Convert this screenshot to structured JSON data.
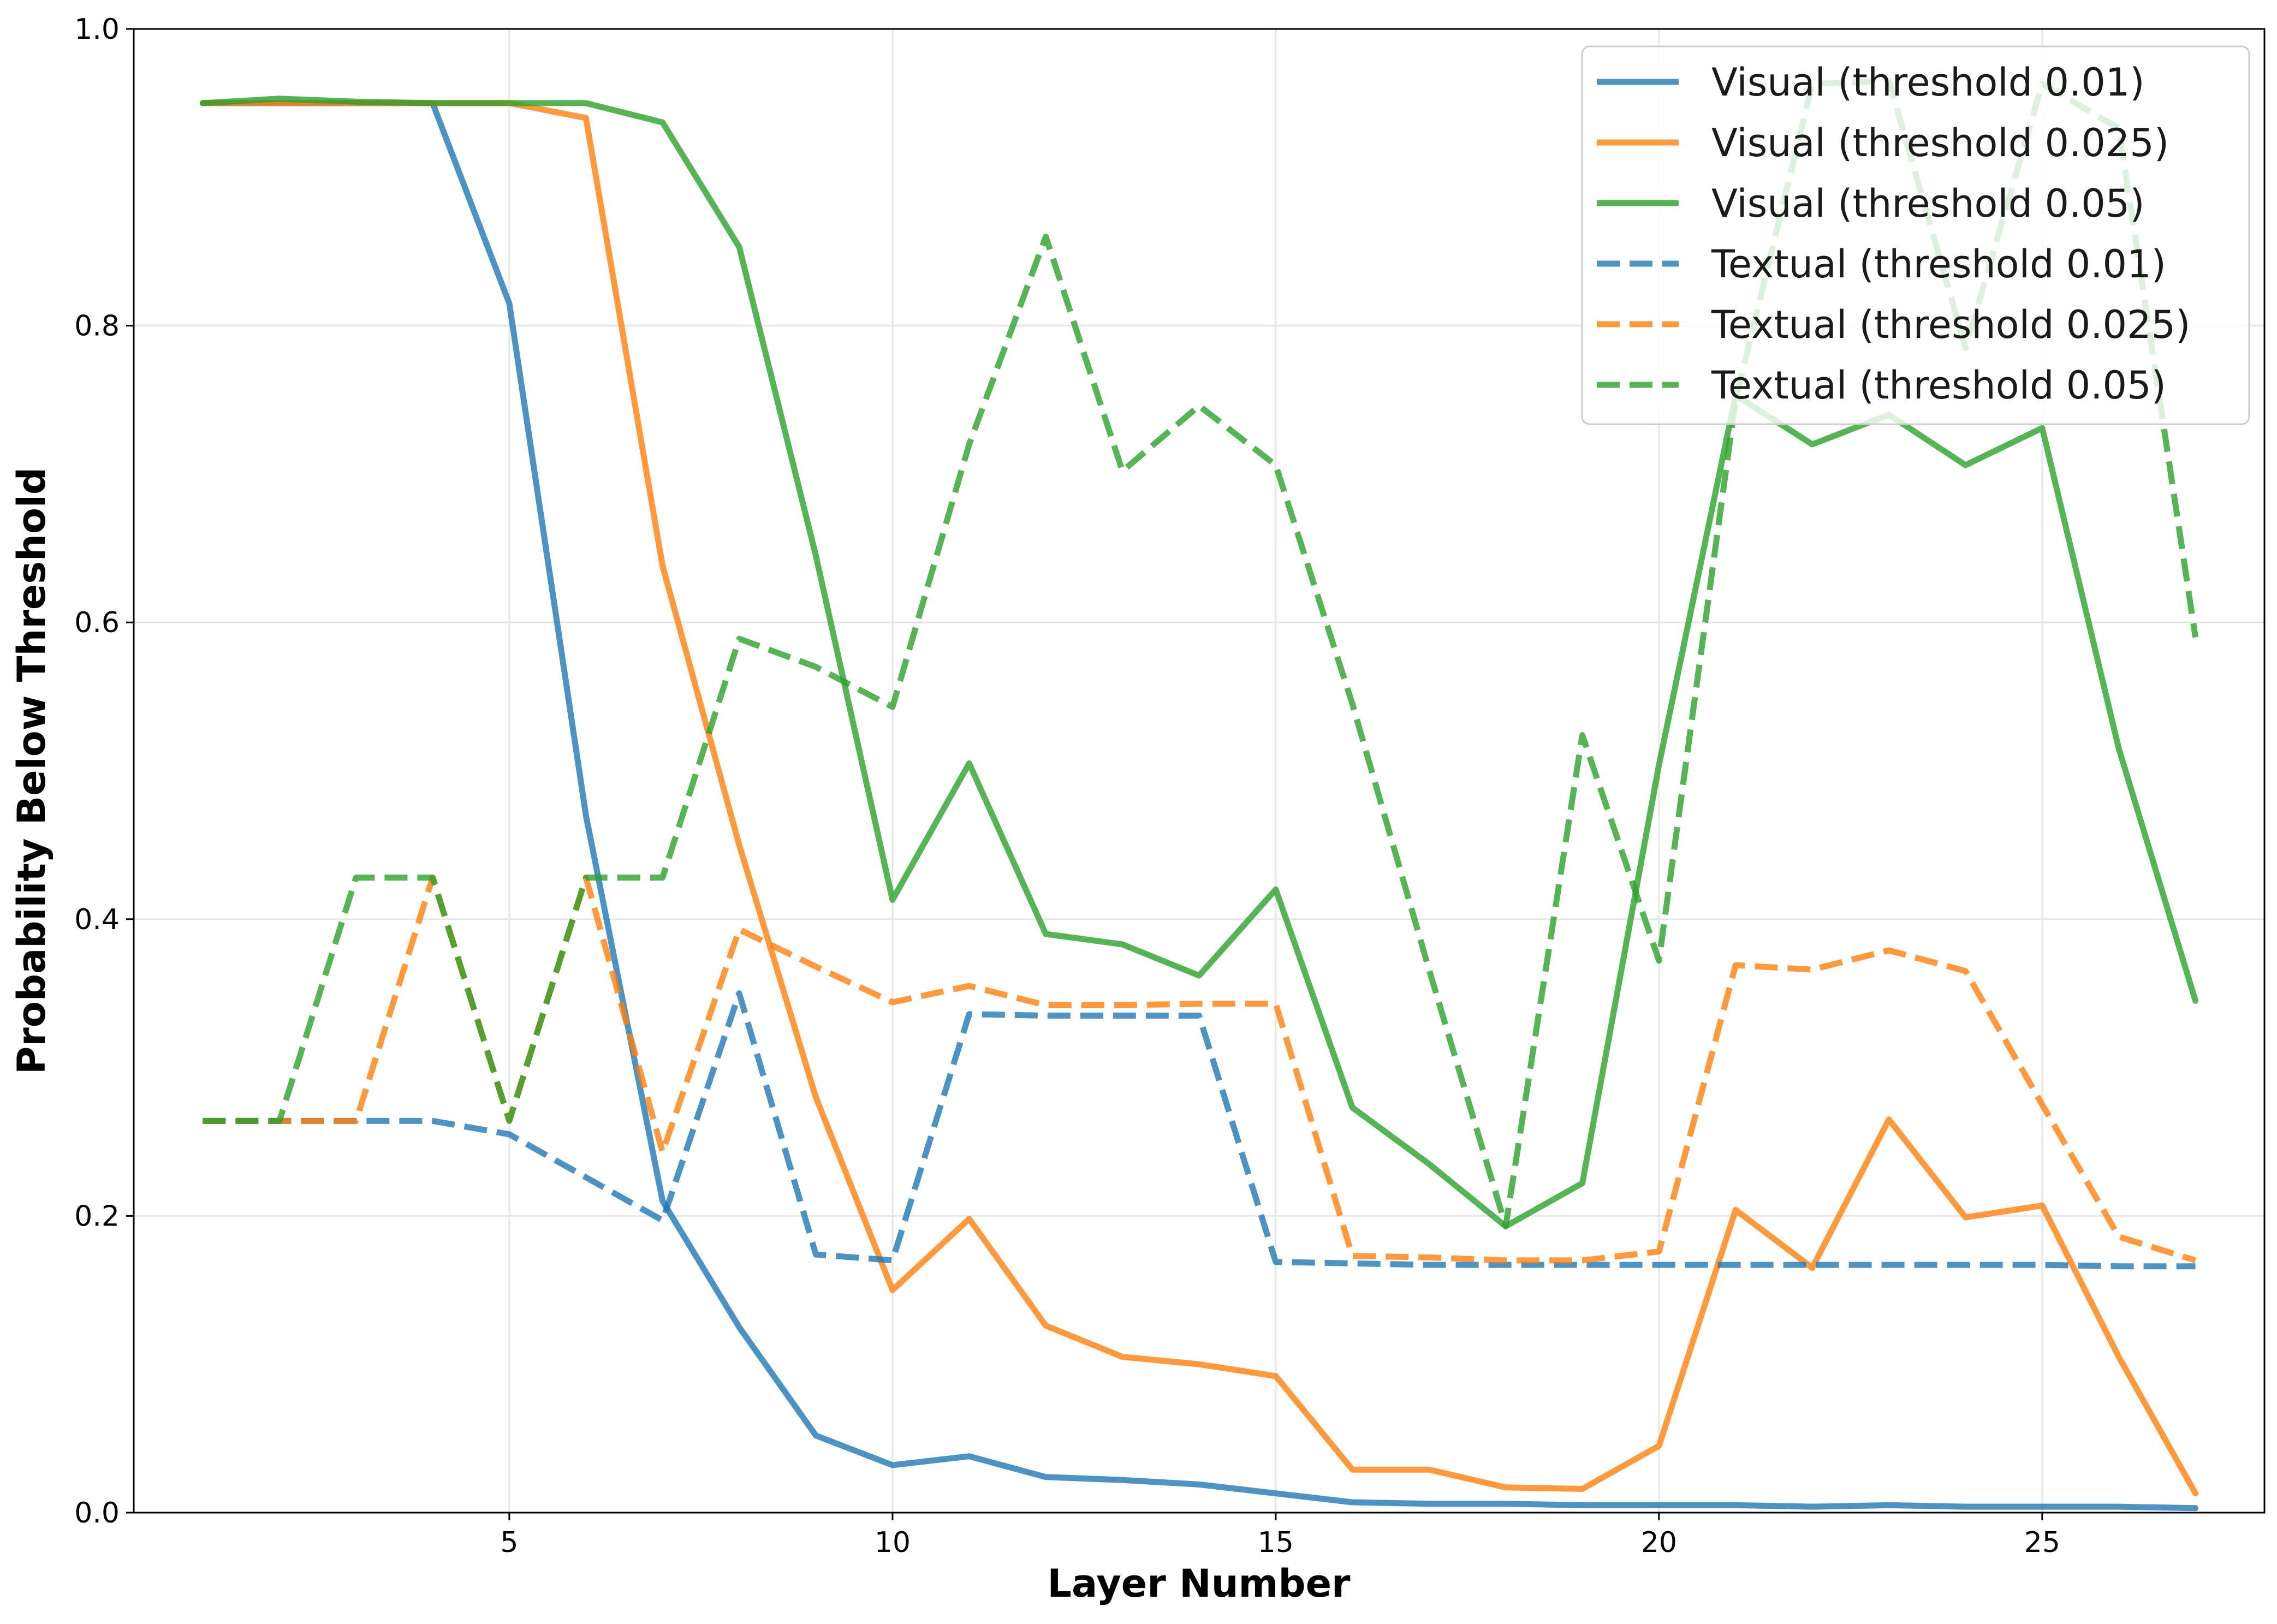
{
  "chart_data": {
    "type": "line",
    "title": "",
    "xlabel": "Layer Number",
    "ylabel": "Probability Below Threshold",
    "xlim": [
      0.1,
      27.9
    ],
    "ylim": [
      0,
      1.0
    ],
    "xticks": [
      5,
      10,
      15,
      20,
      25
    ],
    "yticks": [
      0.0,
      0.2,
      0.4,
      0.6,
      0.8,
      1.0
    ],
    "grid": true,
    "legend_position": "top-right",
    "x": [
      1,
      2,
      3,
      4,
      5,
      6,
      7,
      8,
      9,
      10,
      11,
      12,
      13,
      14,
      15,
      16,
      17,
      18,
      19,
      20,
      21,
      22,
      23,
      24,
      25,
      26,
      27
    ],
    "series": [
      {
        "name": "Visual (threshold 0.01)",
        "color": "#1f77b4",
        "style": "solid",
        "values": [
          0.95,
          0.95,
          0.95,
          0.95,
          0.815,
          0.47,
          0.21,
          0.125,
          0.052,
          0.032,
          0.038,
          0.024,
          0.022,
          0.019,
          0.013,
          0.007,
          0.006,
          0.006,
          0.005,
          0.005,
          0.005,
          0.004,
          0.005,
          0.004,
          0.004,
          0.004,
          0.003
        ]
      },
      {
        "name": "Visual (threshold 0.025)",
        "color": "#ff7f0e",
        "style": "solid",
        "values": [
          0.95,
          0.95,
          0.95,
          0.95,
          0.95,
          0.94,
          0.638,
          0.45,
          0.28,
          0.15,
          0.198,
          0.126,
          0.105,
          0.1,
          0.092,
          0.029,
          0.029,
          0.017,
          0.016,
          0.045,
          0.204,
          0.165,
          0.265,
          0.199,
          0.207,
          0.105,
          0.013
        ]
      },
      {
        "name": "Visual (threshold 0.05)",
        "color": "#2ca02c",
        "style": "solid",
        "values": [
          0.95,
          0.953,
          0.951,
          0.95,
          0.95,
          0.95,
          0.937,
          0.853,
          0.645,
          0.413,
          0.505,
          0.39,
          0.383,
          0.362,
          0.42,
          0.273,
          0.235,
          0.193,
          0.222,
          0.504,
          0.753,
          0.72,
          0.74,
          0.706,
          0.731,
          0.515,
          0.345
        ]
      },
      {
        "name": "Textual (threshold 0.01)",
        "color": "#1f77b4",
        "style": "dashed",
        "values": [
          0.264,
          0.264,
          0.264,
          0.264,
          0.255,
          0.226,
          0.197,
          0.35,
          0.174,
          0.17,
          0.336,
          0.335,
          0.335,
          0.335,
          0.169,
          0.168,
          0.167,
          0.167,
          0.167,
          0.167,
          0.167,
          0.167,
          0.167,
          0.167,
          0.167,
          0.166,
          0.166
        ]
      },
      {
        "name": "Textual (threshold 0.025)",
        "color": "#ff7f0e",
        "style": "dashed",
        "values": [
          0.264,
          0.264,
          0.264,
          0.428,
          0.264,
          0.428,
          0.243,
          0.393,
          0.368,
          0.344,
          0.355,
          0.342,
          0.342,
          0.343,
          0.343,
          0.173,
          0.172,
          0.17,
          0.17,
          0.176,
          0.369,
          0.366,
          0.379,
          0.365,
          0.275,
          0.186,
          0.17
        ]
      },
      {
        "name": "Textual (threshold 0.05)",
        "color": "#2ca02c",
        "style": "dashed",
        "values": [
          0.264,
          0.264,
          0.428,
          0.428,
          0.264,
          0.428,
          0.428,
          0.589,
          0.57,
          0.543,
          0.72,
          0.86,
          0.702,
          0.746,
          0.706,
          0.545,
          0.366,
          0.193,
          0.524,
          0.372,
          0.75,
          0.963,
          0.965,
          0.785,
          0.963,
          0.933,
          0.59
        ]
      }
    ]
  }
}
